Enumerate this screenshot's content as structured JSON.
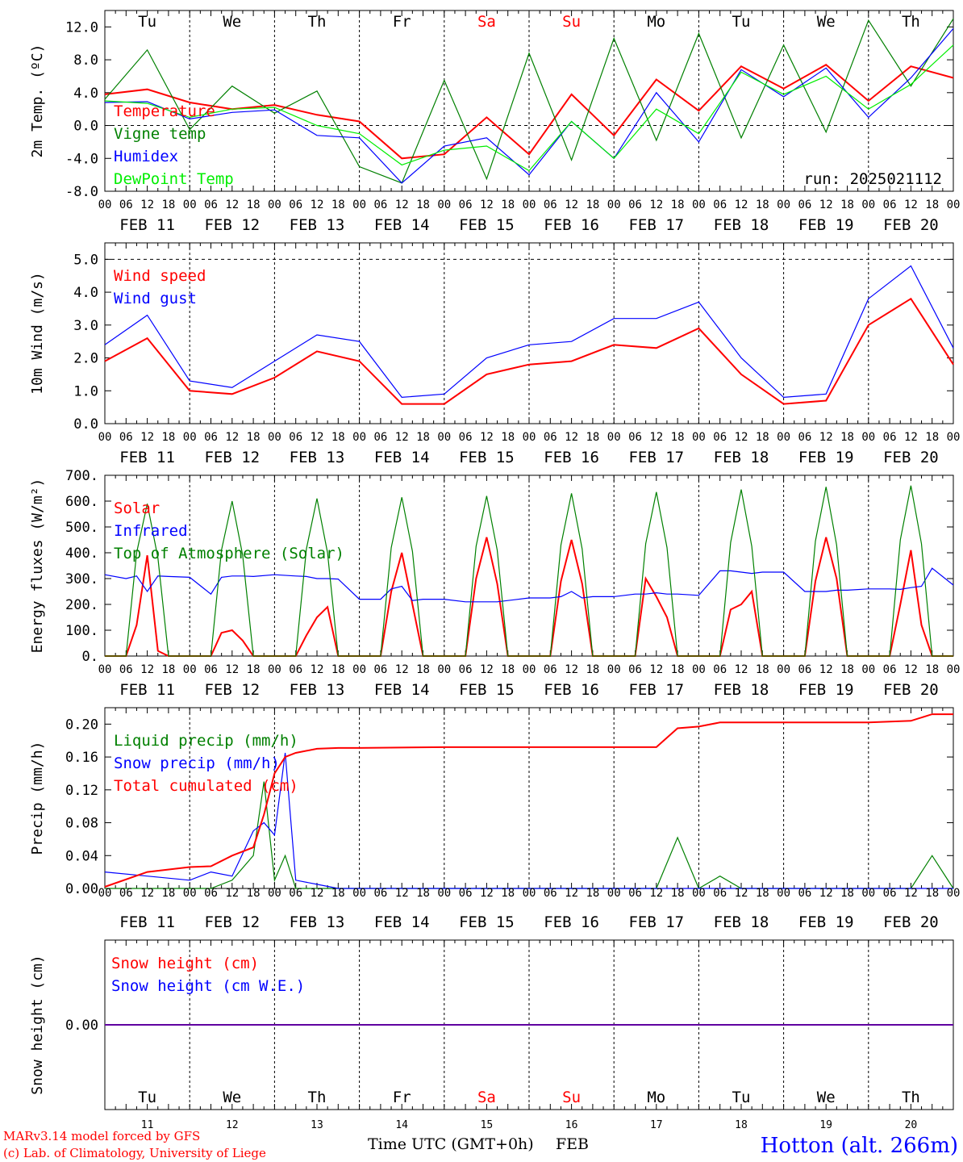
{
  "run_label": "run: 2025021112",
  "station": "Hotton (alt. 266m)",
  "credits": [
    "MARv3.14 model forced by GFS",
    "(c) Lab. of Climatology, University of Liege"
  ],
  "time_axis_label": "Time UTC (GMT+0h)",
  "month_label": "FEB",
  "colors": {
    "red": "#ff0000",
    "green": "#008000",
    "blue": "#0000ff",
    "lime": "#00ee00",
    "weekend": "#ff0000"
  },
  "days": [
    {
      "dow": "Tu",
      "date": "FEB 11",
      "num": "11",
      "weekend": false
    },
    {
      "dow": "We",
      "date": "FEB 12",
      "num": "12",
      "weekend": false
    },
    {
      "dow": "Th",
      "date": "FEB 13",
      "num": "13",
      "weekend": false
    },
    {
      "dow": "Fr",
      "date": "FEB 14",
      "num": "14",
      "weekend": false
    },
    {
      "dow": "Sa",
      "date": "FEB 15",
      "num": "15",
      "weekend": true
    },
    {
      "dow": "Su",
      "date": "FEB 16",
      "num": "16",
      "weekend": true
    },
    {
      "dow": "Mo",
      "date": "FEB 17",
      "num": "17",
      "weekend": false
    },
    {
      "dow": "Tu",
      "date": "FEB 18",
      "num": "18",
      "weekend": false
    },
    {
      "dow": "We",
      "date": "FEB 19",
      "num": "19",
      "weekend": false
    },
    {
      "dow": "Th",
      "date": "FEB 20",
      "num": "20",
      "weekend": false
    }
  ],
  "hour_labels": [
    "00",
    "06",
    "12",
    "18"
  ],
  "chart_data": [
    {
      "type": "line",
      "ylabel": "2m Temp. (ºC)",
      "ylim": [
        -8,
        14
      ],
      "yticks": [
        "-8.0",
        "-4.0",
        "0.0",
        "4.0",
        "8.0",
        "12.0"
      ],
      "yticks_values": [
        -8,
        -4,
        0,
        4,
        8,
        12
      ],
      "ref_line": 0,
      "x_hours": [
        0,
        12,
        24,
        36,
        48,
        60,
        72,
        84,
        96,
        108,
        120,
        132,
        144,
        156,
        168,
        180,
        192,
        204,
        216,
        228,
        240
      ],
      "series": [
        {
          "name": "Temperature",
          "color": "red",
          "values": [
            3.8,
            4.4,
            2.8,
            2.0,
            2.5,
            1.3,
            0.5,
            -4.0,
            -3.5,
            1.0,
            -3.5,
            3.8,
            -1.2,
            5.6,
            1.8,
            7.2,
            4.5,
            7.4,
            3.0,
            7.2,
            5.8
          ]
        },
        {
          "name": "Vigne temp",
          "color": "green",
          "values": [
            3.2,
            9.2,
            -0.5,
            4.8,
            1.5,
            4.2,
            -5.0,
            -7.0,
            5.5,
            -6.5,
            8.8,
            -4.2,
            10.6,
            -1.8,
            11.2,
            -1.5,
            9.8,
            -0.8,
            12.8,
            4.8,
            13.0
          ]
        },
        {
          "name": "Humidex",
          "color": "blue",
          "values": [
            2.8,
            2.9,
            0.8,
            1.6,
            1.9,
            -1.2,
            -1.5,
            -7.0,
            -2.5,
            -1.5,
            -6.0,
            0.5,
            -4.0,
            4.0,
            -2.0,
            6.8,
            3.5,
            7.0,
            1.0,
            5.8,
            11.8
          ]
        },
        {
          "name": "DewPoint Temp",
          "color": "lime",
          "values": [
            3.0,
            2.7,
            1.0,
            2.0,
            2.2,
            0.0,
            -1.0,
            -4.8,
            -3.0,
            -2.5,
            -5.5,
            0.5,
            -4.0,
            2.0,
            -1.0,
            6.5,
            3.8,
            6.0,
            2.0,
            5.0,
            9.8
          ]
        }
      ]
    },
    {
      "type": "line",
      "ylabel": "10m Wind (m/s)",
      "ylim": [
        0,
        5.5
      ],
      "yticks": [
        "0.0",
        "1.0",
        "2.0",
        "3.0",
        "4.0",
        "5.0"
      ],
      "yticks_values": [
        0,
        1,
        2,
        3,
        4,
        5
      ],
      "ref_line": 5,
      "x_hours": [
        0,
        12,
        24,
        36,
        48,
        60,
        72,
        84,
        96,
        108,
        120,
        132,
        144,
        156,
        168,
        180,
        192,
        204,
        216,
        228,
        240
      ],
      "series": [
        {
          "name": "Wind speed",
          "color": "red",
          "values": [
            1.9,
            2.6,
            1.0,
            0.9,
            1.4,
            2.2,
            1.9,
            0.6,
            0.6,
            1.5,
            1.8,
            1.9,
            2.4,
            2.3,
            2.9,
            1.5,
            0.6,
            0.7,
            3.0,
            3.8,
            1.8
          ]
        },
        {
          "name": "Wind gust",
          "color": "blue",
          "values": [
            2.4,
            3.3,
            1.3,
            1.1,
            1.9,
            2.7,
            2.5,
            0.8,
            0.9,
            2.0,
            2.4,
            2.5,
            3.2,
            3.2,
            3.7,
            2.0,
            0.8,
            0.9,
            3.8,
            4.8,
            2.3
          ]
        }
      ]
    },
    {
      "type": "line",
      "ylabel": "Energy fluxes (W/m²)",
      "ylim": [
        0,
        700
      ],
      "yticks": [
        "0.",
        "100.",
        "200.",
        "300.",
        "400.",
        "500.",
        "600.",
        "700."
      ],
      "yticks_values": [
        0,
        100,
        200,
        300,
        400,
        500,
        600,
        700
      ],
      "ref_line": null,
      "x_hours": [
        0,
        6,
        9,
        12,
        15,
        18,
        24,
        30,
        33,
        36,
        39,
        42,
        48,
        54,
        57,
        60,
        63,
        66,
        72,
        78,
        81,
        84,
        87,
        90,
        96,
        102,
        105,
        108,
        111,
        114,
        120,
        126,
        129,
        132,
        135,
        138,
        144,
        150,
        153,
        156,
        159,
        162,
        168,
        174,
        177,
        180,
        183,
        186,
        192,
        198,
        201,
        204,
        207,
        210,
        216,
        222,
        225,
        228,
        231,
        234,
        240
      ],
      "series": [
        {
          "name": "Solar",
          "color": "red",
          "values": [
            0,
            0,
            120,
            390,
            20,
            0,
            0,
            0,
            90,
            100,
            60,
            0,
            0,
            0,
            80,
            150,
            190,
            0,
            0,
            0,
            250,
            400,
            200,
            0,
            0,
            0,
            300,
            460,
            280,
            0,
            0,
            0,
            290,
            450,
            280,
            0,
            0,
            0,
            300,
            230,
            150,
            0,
            0,
            0,
            180,
            200,
            250,
            0,
            0,
            0,
            290,
            460,
            300,
            0,
            0,
            0,
            200,
            410,
            120,
            0,
            0
          ]
        },
        {
          "name": "Infrared",
          "color": "blue",
          "values": [
            315,
            300,
            310,
            250,
            310,
            308,
            305,
            240,
            305,
            310,
            310,
            308,
            315,
            310,
            308,
            300,
            300,
            298,
            220,
            220,
            260,
            270,
            215,
            220,
            220,
            210,
            210,
            210,
            210,
            215,
            225,
            225,
            230,
            250,
            225,
            230,
            230,
            240,
            240,
            245,
            240,
            240,
            235,
            330,
            330,
            325,
            320,
            325,
            325,
            250,
            250,
            250,
            255,
            255,
            260,
            260,
            258,
            265,
            270,
            340,
            275
          ]
        },
        {
          "name": "Top of Atmosphere (Solar)",
          "color": "green",
          "values": [
            0,
            0,
            400,
            590,
            380,
            0,
            0,
            0,
            410,
            600,
            390,
            0,
            0,
            0,
            415,
            610,
            400,
            0,
            0,
            0,
            420,
            615,
            405,
            0,
            0,
            0,
            425,
            620,
            410,
            0,
            0,
            0,
            430,
            630,
            415,
            0,
            0,
            0,
            435,
            635,
            420,
            0,
            0,
            0,
            440,
            645,
            425,
            0,
            0,
            0,
            445,
            655,
            430,
            0,
            0,
            0,
            450,
            660,
            435,
            0,
            0
          ]
        }
      ]
    },
    {
      "type": "line",
      "ylabel": "Precip (mm/h)",
      "ylim": [
        0,
        0.22
      ],
      "yticks": [
        "0.00",
        "0.04",
        "0.08",
        "0.12",
        "0.16",
        "0.20"
      ],
      "yticks_values": [
        0,
        0.04,
        0.08,
        0.12,
        0.16,
        0.2
      ],
      "ref_line": null,
      "x_hours": [
        0,
        12,
        24,
        30,
        36,
        42,
        45,
        48,
        51,
        54,
        60,
        66,
        72,
        96,
        120,
        144,
        156,
        162,
        168,
        174,
        180,
        192,
        216,
        228,
        234,
        240
      ],
      "series": [
        {
          "name": "Liquid precip (mm/h)",
          "color": "green",
          "values": [
            0.0,
            0.0,
            0.0,
            0.0,
            0.01,
            0.04,
            0.13,
            0.01,
            0.04,
            0.0,
            0.0,
            0.0,
            0.0,
            0.0,
            0.0,
            0.0,
            0.0,
            0.062,
            0.0,
            0.015,
            0.0,
            0.0,
            0.0,
            0.0,
            0.04,
            0.0
          ]
        },
        {
          "name": "Snow precip (mm/h)",
          "color": "blue",
          "values": [
            0.02,
            0.015,
            0.01,
            0.02,
            0.015,
            0.07,
            0.08,
            0.065,
            0.165,
            0.01,
            0.005,
            0.0,
            0.0,
            0.0,
            0.0,
            0.0,
            0.0,
            0.0,
            0.0,
            0.0,
            0.0,
            0.0,
            0.0,
            0.0,
            0.0,
            0.0
          ]
        },
        {
          "name": "Total cumulated (cm)",
          "color": "red",
          "values": [
            0.002,
            0.02,
            0.026,
            0.027,
            0.04,
            0.05,
            0.09,
            0.14,
            0.16,
            0.165,
            0.17,
            0.171,
            0.171,
            0.172,
            0.172,
            0.172,
            0.172,
            0.195,
            0.197,
            0.202,
            0.202,
            0.202,
            0.202,
            0.204,
            0.212,
            0.212
          ]
        }
      ]
    },
    {
      "type": "line",
      "ylabel": "Snow height (cm)",
      "yticks": [
        "0.00"
      ],
      "yticks_values": [
        0
      ],
      "ylim": [
        -1,
        1
      ],
      "ref_line": null,
      "x_hours": [
        0,
        240
      ],
      "series": [
        {
          "name": "Snow height (cm)",
          "color": "red",
          "values": [
            0,
            0
          ]
        },
        {
          "name": "Snow height (cm W.E.)",
          "color": "blue",
          "values": [
            0,
            0
          ]
        }
      ]
    }
  ]
}
